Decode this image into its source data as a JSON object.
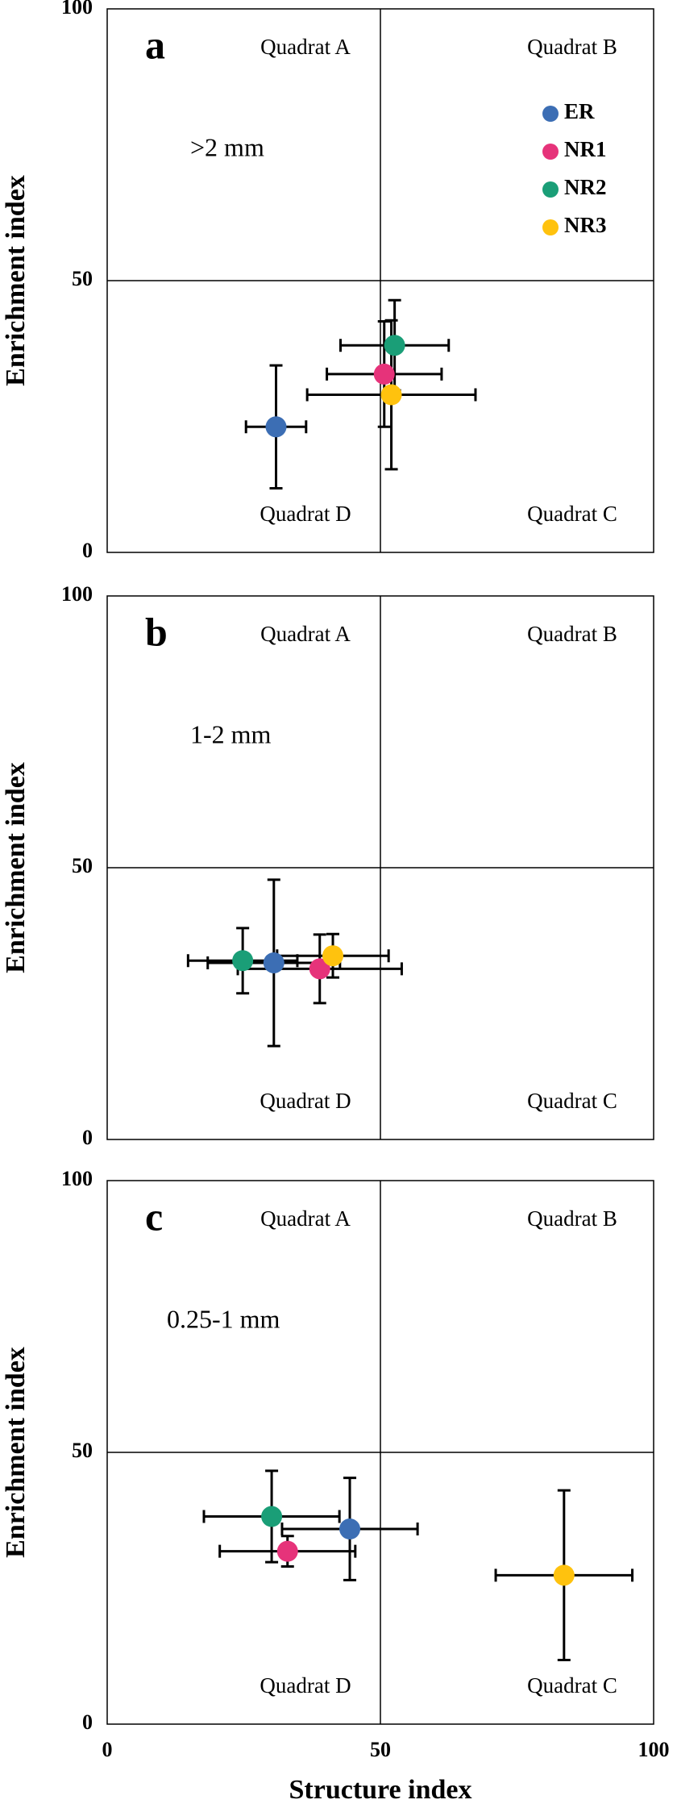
{
  "chart_data": [
    {
      "type": "scatter",
      "panel_label": "a",
      "size_label": ">2 mm",
      "ylabel": "Enrichment index",
      "quadrant_labels": [
        "Quadrat A",
        "Quadrat B",
        "Quadrat C",
        "Quadrat D"
      ],
      "xlim": [
        0,
        100
      ],
      "ylim": [
        0,
        100
      ],
      "yticks": [
        0,
        50,
        100
      ],
      "grid": true,
      "legend": "upper right",
      "series": [
        {
          "name": "ER",
          "color": "#3c6eb4",
          "x": [
            30.9
          ],
          "values": [
            23.1
          ],
          "xerr": [
            5.5
          ],
          "yerr": [
            11.3
          ]
        },
        {
          "name": "NR1",
          "color": "#e6337a",
          "x": [
            50.7
          ],
          "values": [
            32.8
          ],
          "xerr": [
            10.5
          ],
          "yerr": [
            9.7
          ]
        },
        {
          "name": "NR2",
          "color": "#1a9e77",
          "x": [
            52.6
          ],
          "values": [
            38.1
          ],
          "xerr": [
            9.9
          ],
          "yerr": [
            8.3
          ]
        },
        {
          "name": "NR3",
          "color": "#ffc20e",
          "x": [
            52.0
          ],
          "values": [
            29.0
          ],
          "xerr": [
            15.4
          ],
          "yerr": [
            13.7
          ]
        }
      ]
    },
    {
      "type": "scatter",
      "panel_label": "b",
      "size_label": "1-2 mm",
      "ylabel": "Enrichment index",
      "quadrant_labels": [
        "Quadrat A",
        "Quadrat B",
        "Quadrat C",
        "Quadrat D"
      ],
      "xlim": [
        0,
        100
      ],
      "ylim": [
        0,
        100
      ],
      "yticks": [
        0,
        50,
        100
      ],
      "grid": true,
      "series": [
        {
          "color": "#3c6eb4",
          "x": [
            30.5
          ],
          "values": [
            32.5
          ],
          "xerr": [
            12.1
          ],
          "yerr": [
            15.3
          ]
        },
        {
          "color": "#e6337a",
          "x": [
            38.9
          ],
          "values": [
            31.4
          ],
          "xerr": [
            15.0
          ],
          "yerr": [
            6.3
          ]
        },
        {
          "color": "#1a9e77",
          "x": [
            24.8
          ],
          "values": [
            32.9
          ],
          "xerr": [
            10.0
          ],
          "yerr": [
            6.0
          ]
        },
        {
          "color": "#ffc20e",
          "x": [
            41.3
          ],
          "values": [
            33.8
          ],
          "xerr": [
            10.2
          ],
          "yerr": [
            4.0
          ]
        }
      ]
    },
    {
      "type": "scatter",
      "panel_label": "c",
      "size_label": "0.25-1 mm",
      "ylabel": "Enrichment index",
      "xlabel": "Structure index",
      "quadrant_labels": [
        "Quadrat A",
        "Quadrat B",
        "Quadrat C",
        "Quadrat D"
      ],
      "xlim": [
        0,
        100
      ],
      "ylim": [
        0,
        100
      ],
      "xticks": [
        0,
        50,
        100
      ],
      "yticks": [
        0,
        50,
        100
      ],
      "grid": true,
      "series": [
        {
          "color": "#3c6eb4",
          "x": [
            44.4
          ],
          "values": [
            35.9
          ],
          "xerr": [
            12.4
          ],
          "yerr": [
            9.4
          ]
        },
        {
          "color": "#e6337a",
          "x": [
            33.0
          ],
          "values": [
            31.8
          ],
          "xerr": [
            12.4
          ],
          "yerr": [
            2.8
          ]
        },
        {
          "color": "#1a9e77",
          "x": [
            30.1
          ],
          "values": [
            38.2
          ],
          "xerr": [
            12.4
          ],
          "yerr": [
            8.4
          ]
        },
        {
          "color": "#ffc20e",
          "x": [
            83.6
          ],
          "values": [
            27.4
          ],
          "xerr": [
            12.5
          ],
          "yerr": [
            15.6
          ]
        }
      ]
    }
  ]
}
